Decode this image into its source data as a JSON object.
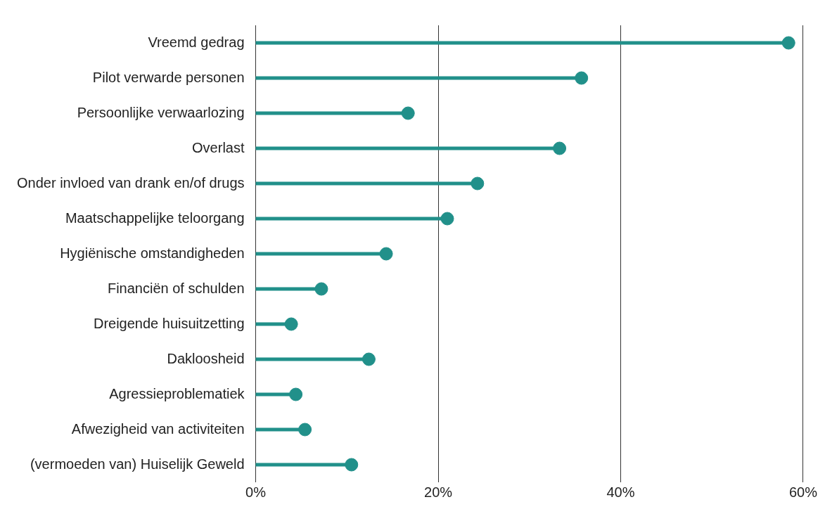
{
  "chart_data": {
    "type": "lollipop",
    "orientation": "horizontal",
    "categories": [
      "Vreemd gedrag",
      "Pilot verwarde personen",
      "Persoonlijke verwaarlozing",
      "Overlast",
      "Onder invloed van drank en/of drugs",
      "Maatschappelijke teloorgang",
      "Hygiënische omstandigheden",
      "Financiën of schulden",
      "Dreigende huisuitzetting",
      "Dakloosheid",
      "Agressieproblematiek",
      "Afwezigheid van activiteiten",
      "(vermoeden van) Huiselijk Geweld"
    ],
    "values": [
      58.4,
      35.7,
      16.7,
      33.3,
      24.3,
      21.0,
      14.3,
      7.2,
      3.9,
      12.4,
      4.4,
      5.4,
      10.5
    ],
    "color": "#21908a",
    "xlim": [
      0,
      60
    ],
    "xticks": [
      {
        "value": 0,
        "label": "0%"
      },
      {
        "value": 20,
        "label": "20%"
      },
      {
        "value": 40,
        "label": "40%"
      },
      {
        "value": 60,
        "label": "60%"
      }
    ],
    "grid": "x",
    "marker": "circle"
  }
}
